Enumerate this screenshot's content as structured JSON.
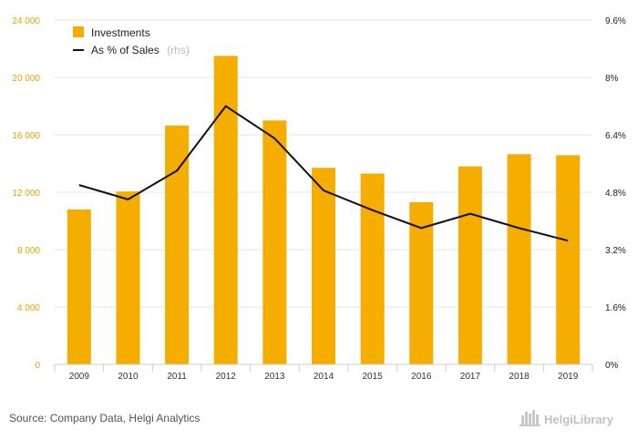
{
  "chart_data": {
    "type": "bar",
    "categories": [
      "2009",
      "2010",
      "2011",
      "2012",
      "2013",
      "2014",
      "2015",
      "2016",
      "2017",
      "2018",
      "2019"
    ],
    "series": [
      {
        "name": "Investments",
        "type": "bar",
        "axis": "left",
        "values": [
          10800,
          12050,
          16650,
          21500,
          17000,
          13700,
          13300,
          11300,
          13800,
          14650,
          14580
        ]
      },
      {
        "name": "As % of Sales",
        "name_suffix": "(rhs)",
        "type": "line",
        "axis": "right",
        "values": [
          5.0,
          4.6,
          5.4,
          7.2,
          6.3,
          4.85,
          4.3,
          3.8,
          4.2,
          3.8,
          3.45
        ]
      }
    ],
    "y_left": {
      "ylim": [
        0,
        24000
      ],
      "ticks": [
        0,
        4000,
        8000,
        12000,
        16000,
        20000,
        24000
      ],
      "tick_labels": [
        "0",
        "4 000",
        "8 000",
        "12 000",
        "16 000",
        "20 000",
        "24 000"
      ]
    },
    "y_right": {
      "ylim": [
        0,
        9.6
      ],
      "ticks": [
        0,
        1.6,
        3.2,
        4.8,
        6.4,
        8,
        9.6
      ],
      "tick_labels": [
        "0%",
        "1.6%",
        "3.2%",
        "4.8%",
        "6.4%",
        "8%",
        "9.6%"
      ]
    },
    "grid": true,
    "legend_placement": "top-left",
    "colors": {
      "bar": "#f5ad00",
      "line": "#111111",
      "grid": "#e6e6e6"
    }
  },
  "footer": {
    "source": "Source: Company Data, Helgi Analytics",
    "brand": "HelgiLibrary"
  }
}
